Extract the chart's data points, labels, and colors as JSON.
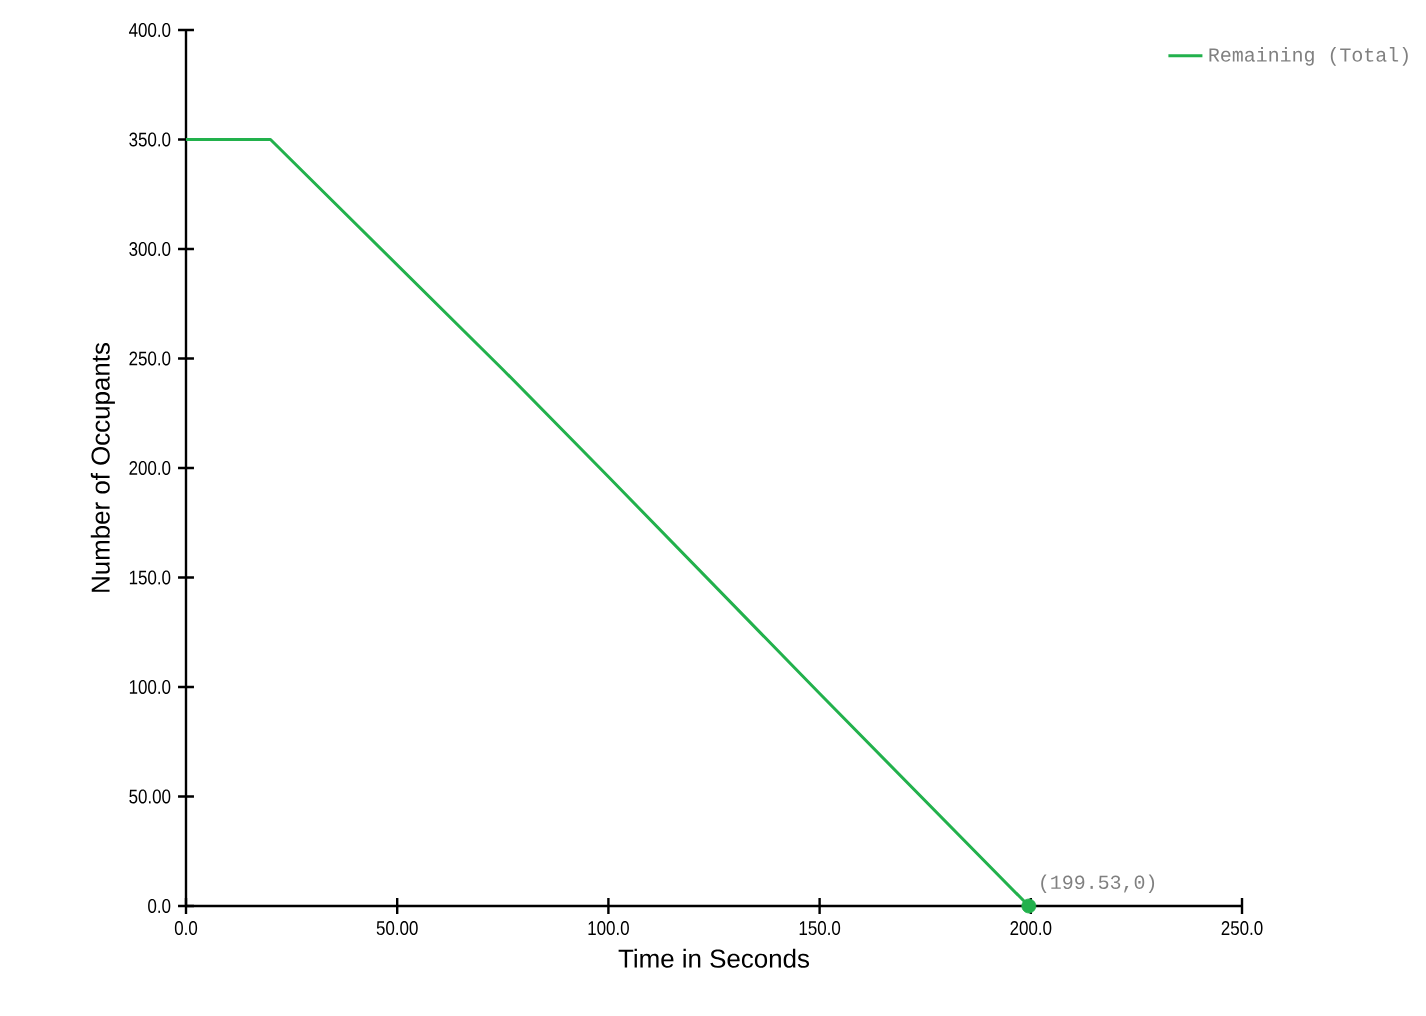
{
  "chart_data": {
    "type": "line",
    "xlabel": "Time in Seconds",
    "ylabel": "Number of Occupants",
    "xlim": [
      0,
      250
    ],
    "ylim": [
      0,
      400
    ],
    "xticks": [
      {
        "value": 0,
        "label": "0.0"
      },
      {
        "value": 50,
        "label": "50.00"
      },
      {
        "value": 100,
        "label": "100.0"
      },
      {
        "value": 150,
        "label": "150.0"
      },
      {
        "value": 200,
        "label": "200.0"
      },
      {
        "value": 250,
        "label": "250.0"
      }
    ],
    "yticks": [
      {
        "value": 0,
        "label": "0.0"
      },
      {
        "value": 50,
        "label": "50.00"
      },
      {
        "value": 100,
        "label": "100.0"
      },
      {
        "value": 150,
        "label": "150.0"
      },
      {
        "value": 200,
        "label": "200.0"
      },
      {
        "value": 250,
        "label": "250.0"
      },
      {
        "value": 300,
        "label": "300.0"
      },
      {
        "value": 350,
        "label": "350.0"
      },
      {
        "value": 400,
        "label": "400.0"
      }
    ],
    "series": [
      {
        "name": "Remaining (Total)",
        "color": "#22b14c",
        "marker": "none",
        "x": [
          0,
          20,
          75,
          100,
          150,
          199.53
        ],
        "values": [
          350,
          350,
          245,
          196,
          97,
          0
        ]
      },
      {
        "type": "scatter",
        "color": "#22b14c",
        "x": [
          199.53
        ],
        "values": [
          0
        ]
      }
    ],
    "annotations": [
      {
        "text": "(199.53,0)",
        "x": 199.53,
        "y": 0
      }
    ],
    "legend": "top right",
    "grid": false,
    "marker": "circle",
    "line_style": "solid"
  }
}
